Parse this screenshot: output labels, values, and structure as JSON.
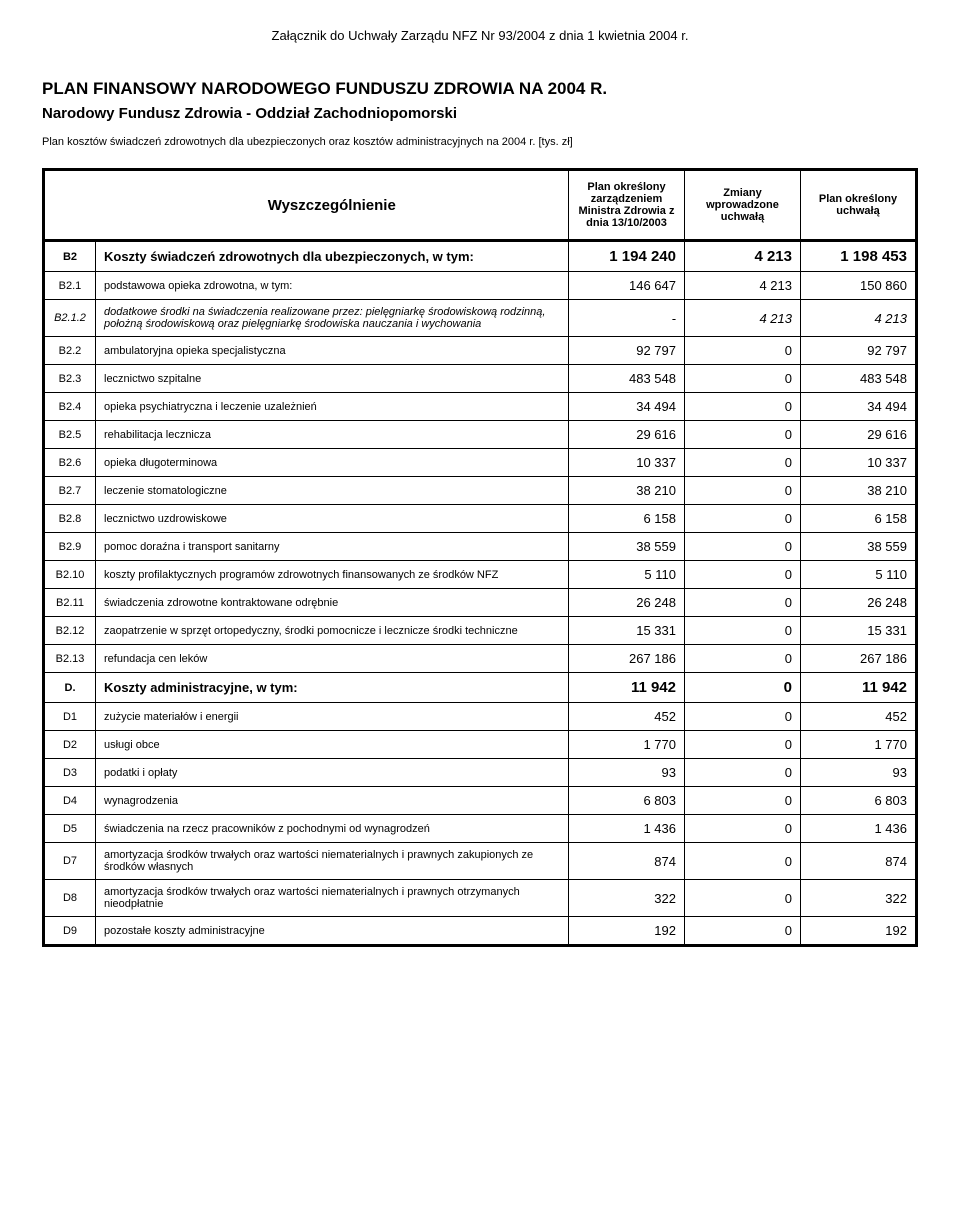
{
  "attachment": "Załącznik do Uchwały Zarządu NFZ Nr 93/2004 z dnia 1 kwietnia 2004 r.",
  "title": "PLAN FINANSOWY NARODOWEGO FUNDUSZU ZDROWIA NA 2004 R.",
  "subtitle": "Narodowy Fundusz Zdrowia - Oddział Zachodniopomorski",
  "plan_desc": "Plan kosztów świadczeń zdrowotnych dla ubezpieczonych oraz kosztów administracyjnych na 2004 r. [tys. zł]",
  "headers": {
    "wysz": "Wyszczególnienie",
    "col1": "Plan określony zarządzeniem Ministra Zdrowia z dnia 13/10/2003",
    "col2": "Zmiany wprowadzone uchwałą",
    "col3": "Plan określony uchwałą"
  },
  "rows": [
    {
      "code": "B2",
      "label": "Koszty świadczeń zdrowotnych dla ubezpieczonych, w tym:",
      "v1": "1 194 240",
      "v2": "4 213",
      "v3": "1 198 453",
      "bold": true
    },
    {
      "code": "B2.1",
      "label": "podstawowa opieka zdrowotna, w tym:",
      "v1": "146 647",
      "v2": "4 213",
      "v3": "150 860"
    },
    {
      "code": "B2.1.2",
      "label": "dodatkowe środki na świadczenia realizowane przez: pielęgniarkę środowiskową rodzinną, położną środowiskową oraz pielęgniarkę środowiska nauczania i wychowania",
      "v1": "-",
      "v2": "4 213",
      "v3": "4 213",
      "italic": true
    },
    {
      "code": "B2.2",
      "label": "ambulatoryjna opieka specjalistyczna",
      "v1": "92 797",
      "v2": "0",
      "v3": "92 797"
    },
    {
      "code": "B2.3",
      "label": "lecznictwo szpitalne",
      "v1": "483 548",
      "v2": "0",
      "v3": "483 548"
    },
    {
      "code": "B2.4",
      "label": "opieka psychiatryczna i leczenie uzależnień",
      "v1": "34 494",
      "v2": "0",
      "v3": "34 494"
    },
    {
      "code": "B2.5",
      "label": "rehabilitacja lecznicza",
      "v1": "29 616",
      "v2": "0",
      "v3": "29 616"
    },
    {
      "code": "B2.6",
      "label": "opieka długoterminowa",
      "v1": "10 337",
      "v2": "0",
      "v3": "10 337"
    },
    {
      "code": "B2.7",
      "label": "leczenie stomatologiczne",
      "v1": "38 210",
      "v2": "0",
      "v3": "38 210"
    },
    {
      "code": "B2.8",
      "label": "lecznictwo uzdrowiskowe",
      "v1": "6 158",
      "v2": "0",
      "v3": "6 158"
    },
    {
      "code": "B2.9",
      "label": "pomoc doraźna i transport sanitarny",
      "v1": "38 559",
      "v2": "0",
      "v3": "38 559"
    },
    {
      "code": "B2.10",
      "label": "koszty profilaktycznych programów zdrowotnych finansowanych ze środków NFZ",
      "v1": "5 110",
      "v2": "0",
      "v3": "5 110"
    },
    {
      "code": "B2.11",
      "label": "świadczenia zdrowotne kontraktowane odrębnie",
      "v1": "26 248",
      "v2": "0",
      "v3": "26 248"
    },
    {
      "code": "B2.12",
      "label": "zaopatrzenie w sprzęt ortopedyczny, środki pomocnicze i lecznicze środki techniczne",
      "v1": "15 331",
      "v2": "0",
      "v3": "15 331"
    },
    {
      "code": "B2.13",
      "label": "refundacja cen leków",
      "v1": "267 186",
      "v2": "0",
      "v3": "267 186"
    },
    {
      "code": "D.",
      "label": "Koszty administracyjne, w tym:",
      "v1": "11 942",
      "v2": "0",
      "v3": "11 942",
      "bold": true
    },
    {
      "code": "D1",
      "label": "zużycie materiałów i energii",
      "v1": "452",
      "v2": "0",
      "v3": "452"
    },
    {
      "code": "D2",
      "label": "usługi obce",
      "v1": "1 770",
      "v2": "0",
      "v3": "1 770"
    },
    {
      "code": "D3",
      "label": "podatki i opłaty",
      "v1": "93",
      "v2": "0",
      "v3": "93"
    },
    {
      "code": "D4",
      "label": "wynagrodzenia",
      "v1": "6 803",
      "v2": "0",
      "v3": "6 803"
    },
    {
      "code": "D5",
      "label": "świadczenia na rzecz pracowników z pochodnymi od wynagrodzeń",
      "v1": "1 436",
      "v2": "0",
      "v3": "1 436"
    },
    {
      "code": "D7",
      "label": "amortyzacja środków trwałych oraz wartości niematerialnych i prawnych zakupionych ze środków własnych",
      "v1": "874",
      "v2": "0",
      "v3": "874"
    },
    {
      "code": "D8",
      "label": "amortyzacja środków trwałych oraz wartości niematerialnych i prawnych otrzymanych nieodpłatnie",
      "v1": "322",
      "v2": "0",
      "v3": "322"
    },
    {
      "code": "D9",
      "label": "pozostałe koszty administracyjne",
      "v1": "192",
      "v2": "0",
      "v3": "192"
    }
  ]
}
